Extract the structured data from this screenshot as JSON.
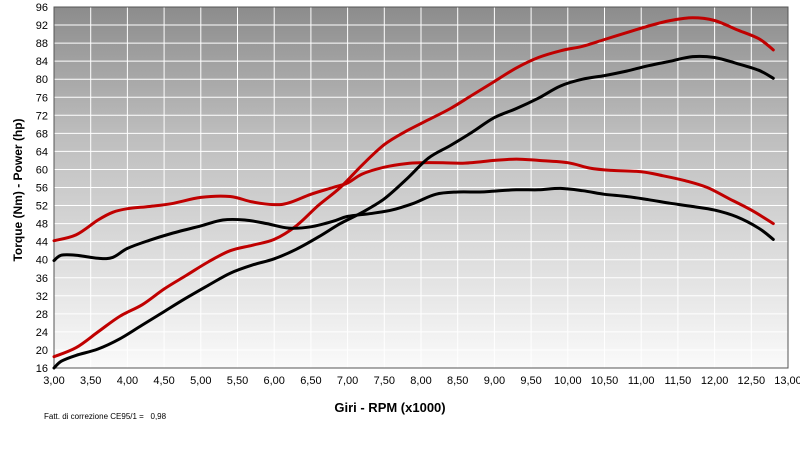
{
  "chart_data": {
    "type": "line",
    "title": "",
    "xlabel": "Giri - RPM (x1000)",
    "ylabel": "Torque (Nm) - Power (hp)",
    "xlim": [
      3.0,
      13.0
    ],
    "ylim": [
      16,
      96
    ],
    "x_ticks": [
      "3,00",
      "3,50",
      "4,00",
      "4,50",
      "5,00",
      "5,50",
      "6,00",
      "6,50",
      "7,00",
      "7,50",
      "8,00",
      "8,50",
      "9,00",
      "9,50",
      "10,00",
      "10,50",
      "11,00",
      "11,50",
      "12,00",
      "12,50",
      "13,00"
    ],
    "y_ticks": [
      "16",
      "20",
      "24",
      "28",
      "32",
      "36",
      "40",
      "44",
      "48",
      "52",
      "56",
      "60",
      "64",
      "68",
      "72",
      "76",
      "80",
      "84",
      "88",
      "92",
      "96"
    ],
    "grid": true,
    "background": "gradient dark gray top to white bottom",
    "series": [
      {
        "color": "#c00000",
        "x": [
          3.0,
          3.3,
          3.6,
          3.8,
          4.0,
          4.3,
          4.6,
          5.0,
          5.4,
          5.7,
          6.0,
          6.2,
          6.5,
          6.8,
          7.0,
          7.2,
          7.5,
          7.8,
          8.0,
          8.3,
          8.6,
          9.0,
          9.3,
          9.6,
          10.0,
          10.3,
          10.6,
          11.0,
          11.3,
          11.6,
          11.9,
          12.2,
          12.5,
          12.8
        ],
        "values": [
          44.2,
          45.5,
          48.8,
          50.5,
          51.3,
          51.8,
          52.4,
          53.8,
          54.0,
          52.8,
          52.2,
          52.6,
          54.5,
          56.0,
          57.0,
          59.0,
          60.5,
          61.3,
          61.5,
          61.5,
          61.4,
          62.0,
          62.3,
          62.0,
          61.5,
          60.3,
          59.8,
          59.5,
          58.6,
          57.5,
          56.0,
          53.5,
          51.0,
          48.0
        ]
      },
      {
        "color": "#c00000",
        "x": [
          3.0,
          3.3,
          3.6,
          3.9,
          4.2,
          4.5,
          4.8,
          5.1,
          5.4,
          5.7,
          6.0,
          6.3,
          6.6,
          6.9,
          7.2,
          7.5,
          7.8,
          8.1,
          8.4,
          8.7,
          9.0,
          9.3,
          9.6,
          9.9,
          10.2,
          10.5,
          10.8,
          11.1,
          11.4,
          11.7,
          12.0,
          12.3,
          12.6,
          12.8
        ],
        "values": [
          18.5,
          20.5,
          24.0,
          27.5,
          30.0,
          33.5,
          36.5,
          39.5,
          42.0,
          43.2,
          44.5,
          47.5,
          52.0,
          56.0,
          61.0,
          65.5,
          68.5,
          71.0,
          73.5,
          76.5,
          79.5,
          82.5,
          84.8,
          86.3,
          87.3,
          88.8,
          90.3,
          91.8,
          93.0,
          93.6,
          93.0,
          91.0,
          89.0,
          86.5
        ]
      },
      {
        "color": "#000000",
        "x": [
          3.0,
          3.1,
          3.3,
          3.6,
          3.8,
          4.0,
          4.3,
          4.6,
          5.0,
          5.3,
          5.6,
          5.9,
          6.2,
          6.5,
          6.8,
          7.0,
          7.3,
          7.6,
          7.9,
          8.2,
          8.5,
          8.8,
          9.0,
          9.3,
          9.6,
          9.9,
          10.2,
          10.5,
          10.8,
          11.1,
          11.4,
          11.7,
          12.0,
          12.3,
          12.6,
          12.8
        ],
        "values": [
          39.8,
          41.0,
          41.0,
          40.3,
          40.5,
          42.5,
          44.3,
          45.8,
          47.5,
          48.8,
          48.8,
          48.0,
          47.0,
          47.3,
          48.5,
          49.6,
          50.2,
          51.0,
          52.5,
          54.5,
          55.0,
          55.0,
          55.2,
          55.5,
          55.5,
          55.8,
          55.3,
          54.5,
          54.0,
          53.3,
          52.5,
          51.8,
          51.0,
          49.5,
          47.0,
          44.5
        ]
      },
      {
        "color": "#000000",
        "x": [
          3.0,
          3.1,
          3.3,
          3.6,
          3.9,
          4.2,
          4.5,
          4.8,
          5.1,
          5.4,
          5.7,
          6.0,
          6.3,
          6.6,
          6.9,
          7.2,
          7.5,
          7.8,
          8.1,
          8.4,
          8.7,
          9.0,
          9.3,
          9.6,
          9.9,
          10.2,
          10.5,
          10.8,
          11.1,
          11.4,
          11.7,
          12.0,
          12.3,
          12.6,
          12.8
        ],
        "values": [
          16.0,
          17.5,
          18.8,
          20.2,
          22.5,
          25.5,
          28.5,
          31.5,
          34.3,
          37.0,
          38.8,
          40.2,
          42.3,
          45.0,
          48.0,
          50.5,
          53.5,
          57.8,
          62.5,
          65.3,
          68.3,
          71.5,
          73.5,
          75.8,
          78.5,
          80.0,
          80.8,
          81.8,
          83.0,
          84.0,
          85.0,
          84.8,
          83.5,
          82.0,
          80.2
        ]
      }
    ]
  },
  "footnote": {
    "label": "Fatt. di correzione CE95/1 =",
    "value": "0,98"
  }
}
